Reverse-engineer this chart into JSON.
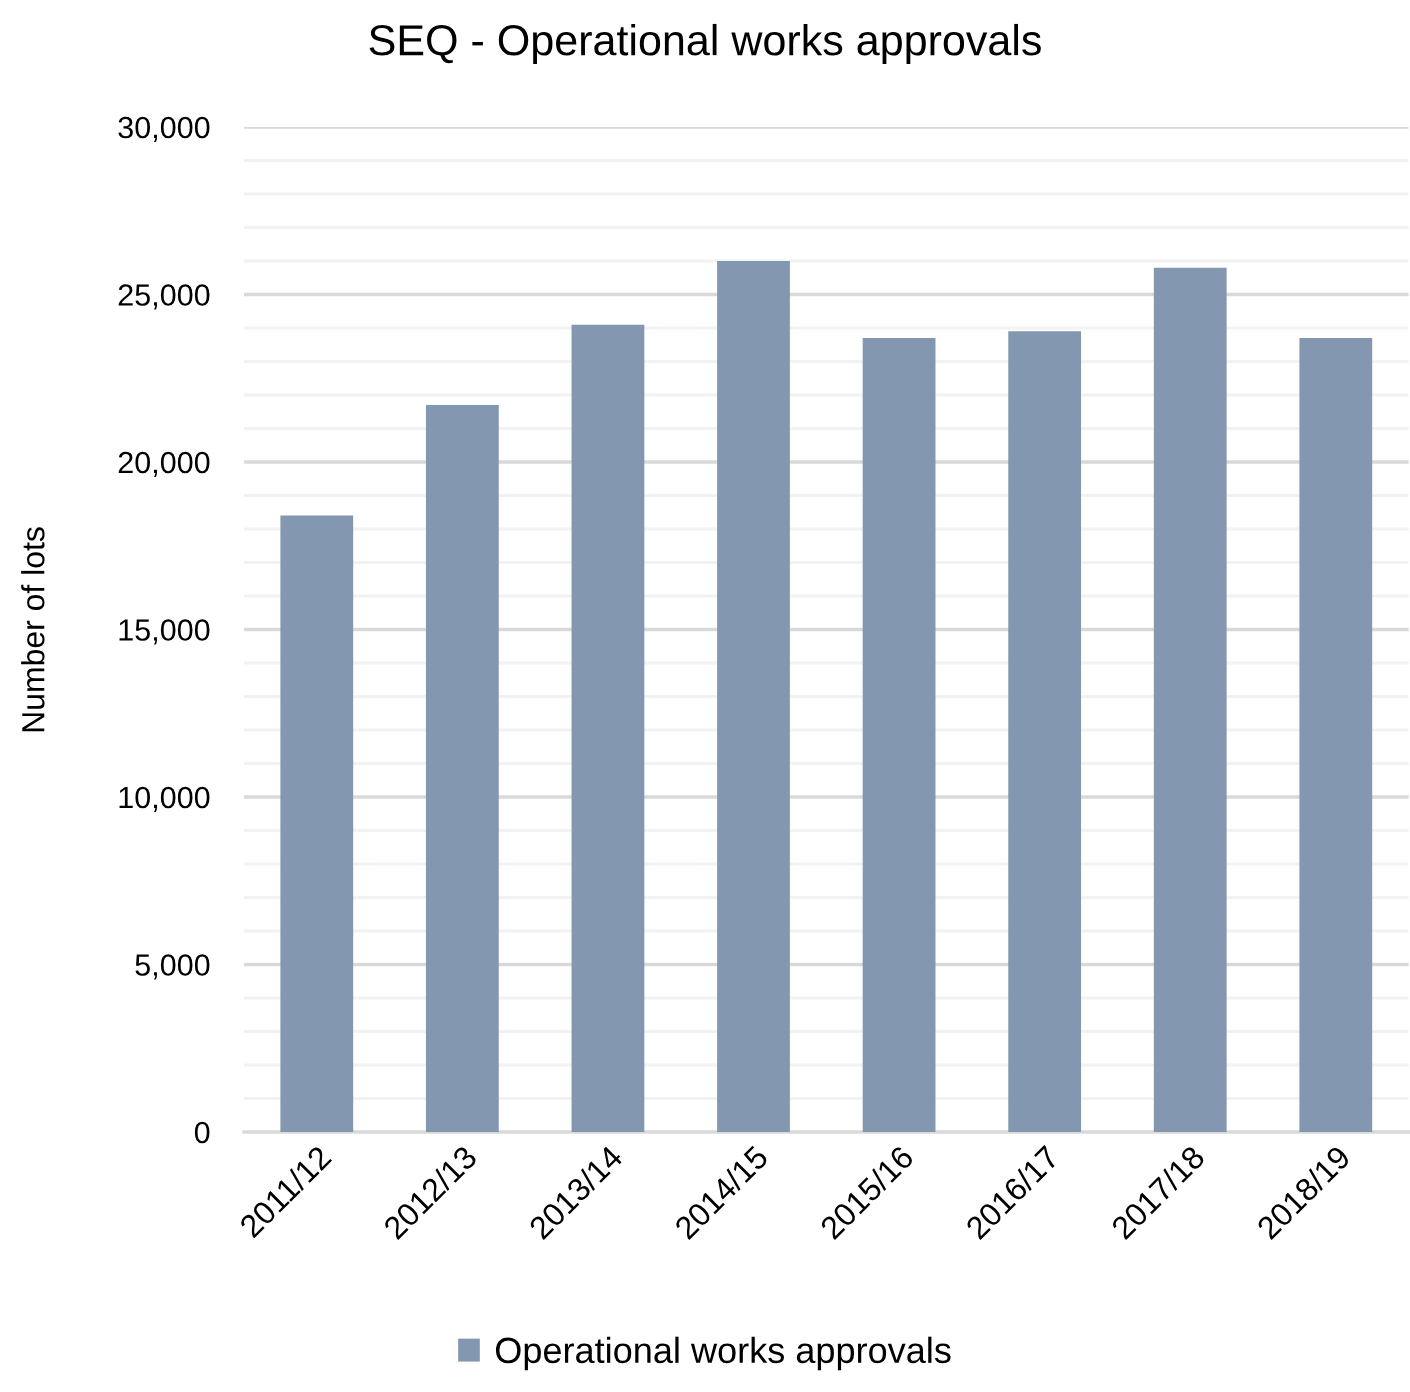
{
  "chart_data": {
    "type": "bar",
    "title": "SEQ - Operational works approvals",
    "ylabel": "Number of lots",
    "categories": [
      "2011/12",
      "2012/13",
      "2013/14",
      "2014/15",
      "2015/16",
      "2016/17",
      "2017/18",
      "2018/19"
    ],
    "series": [
      {
        "name": "Operational works approvals",
        "color": "#8497b0",
        "values": [
          18400,
          21700,
          24100,
          26000,
          23700,
          23900,
          25800,
          23700
        ]
      }
    ],
    "ylim": [
      0,
      30000
    ],
    "yticks": [
      0,
      {
        "value": 1000,
        "label": null
      },
      {
        "value": 2000,
        "label": null
      },
      {
        "value": 3000,
        "label": null
      },
      {
        "value": 4000,
        "label": null
      },
      {
        "value": 5000,
        "label": "5,000"
      },
      {
        "value": 6000,
        "label": null
      },
      {
        "value": 7000,
        "label": null
      },
      {
        "value": 8000,
        "label": null
      },
      {
        "value": 9000,
        "label": null
      },
      {
        "value": 10000,
        "label": "10,000"
      },
      {
        "value": 11000,
        "label": null
      },
      {
        "value": 12000,
        "label": null
      },
      {
        "value": 13000,
        "label": null
      },
      {
        "value": 14000,
        "label": null
      },
      {
        "value": 15000,
        "label": "15,000"
      },
      {
        "value": 16000,
        "label": null
      },
      {
        "value": 17000,
        "label": null
      },
      {
        "value": 18000,
        "label": null
      },
      {
        "value": 19000,
        "label": null
      },
      {
        "value": 20000,
        "label": "20,000"
      },
      {
        "value": 21000,
        "label": null
      },
      {
        "value": 22000,
        "label": null
      },
      {
        "value": 23000,
        "label": null
      },
      {
        "value": 24000,
        "label": null
      },
      {
        "value": 25000,
        "label": "25,000"
      },
      {
        "value": 26000,
        "label": null
      },
      {
        "value": 27000,
        "label": null
      },
      {
        "value": 28000,
        "label": null
      },
      {
        "value": 29000,
        "label": null
      },
      {
        "value": 30000,
        "label": "30,000"
      }
    ],
    "grid": "y",
    "legend": "bottom"
  }
}
